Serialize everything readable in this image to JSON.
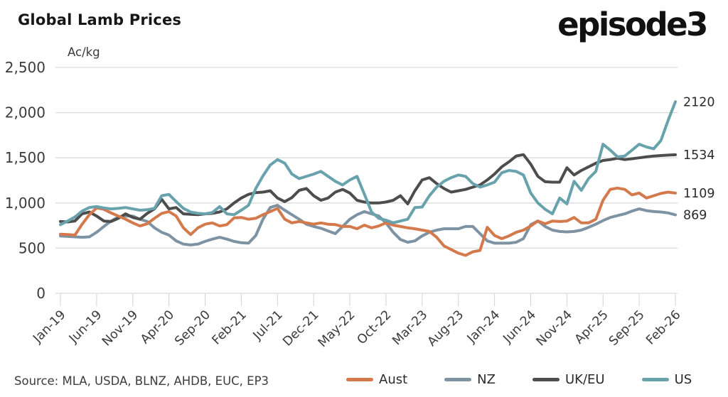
{
  "header": {
    "logo": "episode3"
  },
  "source": {
    "text": "Source: MLA, USDA, BLNZ, AHDB, EUC, EP3"
  },
  "colors": {
    "grid": "#dcdcdc",
    "tick": "#d2d2d2",
    "axis_text": "#3b3b3b"
  },
  "chart_data": {
    "type": "line",
    "title": "Global Lamb Prices",
    "unit_label": "Ac/kg",
    "ylabel": "Ac/kg",
    "ylim": [
      0,
      2500
    ],
    "y_tick_labels": [
      "0",
      "500",
      "1,000",
      "1,500",
      "2,000",
      "2,500"
    ],
    "x_tick_labels": [
      "Jan-19",
      "Jun-19",
      "Nov-19",
      "Apr-20",
      "Sep-20",
      "Feb-21",
      "Jul-21",
      "Dec-21",
      "May-22",
      "Oct-22",
      "Mar-23",
      "Aug-23",
      "Jan-24",
      "Jun-24",
      "Nov-24",
      "Apr-25",
      "Sep-25",
      "Feb-26"
    ],
    "x_tick_month_indices": [
      0,
      5,
      10,
      15,
      20,
      25,
      30,
      35,
      40,
      45,
      50,
      55,
      60,
      65,
      70,
      75,
      80,
      85
    ],
    "months_span": 86,
    "grid": "horizontal",
    "legend_position": "bottom",
    "series": [
      {
        "name": "Aust",
        "color": "#d4794c",
        "end_label": "1109",
        "values": [
          655,
          650,
          645,
          765,
          870,
          945,
          930,
          890,
          855,
          820,
          780,
          745,
          770,
          830,
          885,
          905,
          855,
          725,
          650,
          725,
          765,
          780,
          745,
          760,
          835,
          840,
          820,
          830,
          870,
          905,
          940,
          820,
          780,
          795,
          780,
          765,
          780,
          765,
          760,
          740,
          740,
          715,
          755,
          725,
          745,
          780,
          755,
          740,
          725,
          715,
          700,
          685,
          620,
          525,
          485,
          445,
          420,
          460,
          475,
          730,
          640,
          605,
          635,
          675,
          700,
          745,
          800,
          770,
          800,
          795,
          800,
          840,
          780,
          780,
          820,
          1030,
          1150,
          1165,
          1150,
          1090,
          1110,
          1055,
          1080,
          1105,
          1120,
          1109
        ]
      },
      {
        "name": "NZ",
        "color": "#7d93a3",
        "end_label": "869",
        "values": [
          635,
          630,
          625,
          620,
          625,
          675,
          740,
          800,
          845,
          855,
          855,
          820,
          795,
          725,
          675,
          645,
          580,
          545,
          535,
          545,
          575,
          600,
          620,
          600,
          575,
          560,
          555,
          640,
          820,
          950,
          975,
          920,
          870,
          820,
          765,
          740,
          720,
          690,
          660,
          740,
          820,
          870,
          905,
          880,
          855,
          780,
          675,
          595,
          565,
          580,
          635,
          675,
          700,
          715,
          715,
          715,
          740,
          740,
          660,
          580,
          555,
          555,
          555,
          565,
          605,
          760,
          800,
          740,
          700,
          685,
          680,
          685,
          700,
          730,
          765,
          805,
          840,
          860,
          880,
          910,
          935,
          915,
          905,
          900,
          890,
          869
        ]
      },
      {
        "name": "UK/EU",
        "color": "#4d4d4d",
        "end_label": "1534",
        "values": [
          795,
          790,
          800,
          880,
          900,
          855,
          800,
          795,
          830,
          880,
          840,
          820,
          885,
          935,
          1040,
          935,
          950,
          880,
          875,
          870,
          880,
          885,
          900,
          935,
          1000,
          1055,
          1095,
          1115,
          1120,
          1135,
          1055,
          1015,
          1060,
          1140,
          1160,
          1080,
          1030,
          1055,
          1120,
          1150,
          1110,
          1030,
          1010,
          1000,
          1000,
          1010,
          1030,
          1080,
          990,
          1135,
          1255,
          1280,
          1215,
          1160,
          1120,
          1135,
          1150,
          1175,
          1200,
          1255,
          1320,
          1400,
          1455,
          1520,
          1535,
          1430,
          1295,
          1235,
          1230,
          1230,
          1390,
          1310,
          1360,
          1400,
          1440,
          1470,
          1480,
          1495,
          1480,
          1490,
          1500,
          1510,
          1520,
          1525,
          1530,
          1534
        ]
      },
      {
        "name": "US",
        "color": "#68a2ac",
        "end_label": "2120",
        "values": [
          760,
          800,
          845,
          910,
          950,
          960,
          945,
          935,
          940,
          950,
          935,
          920,
          925,
          940,
          1080,
          1095,
          1015,
          940,
          900,
          885,
          880,
          895,
          960,
          880,
          870,
          920,
          975,
          1160,
          1300,
          1420,
          1480,
          1440,
          1320,
          1270,
          1295,
          1320,
          1350,
          1295,
          1240,
          1200,
          1255,
          1295,
          1100,
          900,
          830,
          810,
          780,
          800,
          820,
          950,
          955,
          1080,
          1175,
          1240,
          1280,
          1310,
          1295,
          1215,
          1175,
          1200,
          1230,
          1335,
          1360,
          1350,
          1310,
          1110,
          1000,
          930,
          880,
          1055,
          990,
          1240,
          1140,
          1270,
          1350,
          1650,
          1585,
          1510,
          1520,
          1585,
          1650,
          1620,
          1600,
          1690,
          1915,
          2120
        ]
      }
    ]
  }
}
